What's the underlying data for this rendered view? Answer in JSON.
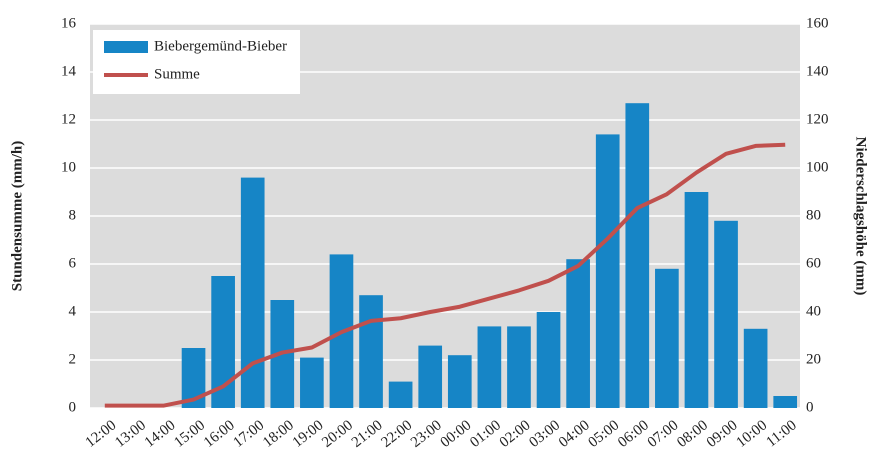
{
  "chart_data": {
    "type": "bar_line",
    "categories": [
      "12:00",
      "13:00",
      "14:00",
      "15:00",
      "16:00",
      "17:00",
      "18:00",
      "19:00",
      "20:00",
      "21:00",
      "22:00",
      "23:00",
      "00:00",
      "01:00",
      "02:00",
      "03:00",
      "04:00",
      "05:00",
      "06:00",
      "07:00",
      "08:00",
      "09:00",
      "10:00",
      "11:00"
    ],
    "series": [
      {
        "name": "Biebergemünd-Bieber",
        "type": "bar",
        "color": "#1685c6",
        "values": [
          0,
          0,
          0,
          2.5,
          5.5,
          9.6,
          4.5,
          2.1,
          6.4,
          4.7,
          1.1,
          2.6,
          2.2,
          3.4,
          3.4,
          4.0,
          6.2,
          11.4,
          12.7,
          5.8,
          9.0,
          7.8,
          3.3,
          0.5
        ]
      },
      {
        "name": "Summe",
        "type": "line",
        "axis": "y2",
        "color": "#c0504d",
        "values": [
          1,
          1,
          1,
          3.5,
          9,
          18.6,
          23.1,
          25.2,
          31.6,
          36.3,
          37.4,
          40,
          42.2,
          45.6,
          49,
          53,
          59.2,
          70.6,
          83.3,
          89.1,
          98.1,
          105.9,
          109.2,
          109.7
        ]
      }
    ],
    "ylabel": "Stundensumme (mm/h)",
    "y2label": "Niederschlagshöhe (mm)",
    "ylim": [
      0,
      16
    ],
    "yticks": [
      0,
      2,
      4,
      6,
      8,
      10,
      12,
      14,
      16
    ],
    "y2lim": [
      0,
      160
    ],
    "y2ticks": [
      0,
      20,
      40,
      60,
      80,
      100,
      120,
      140,
      160
    ],
    "grid": true,
    "legend": "upper left"
  }
}
